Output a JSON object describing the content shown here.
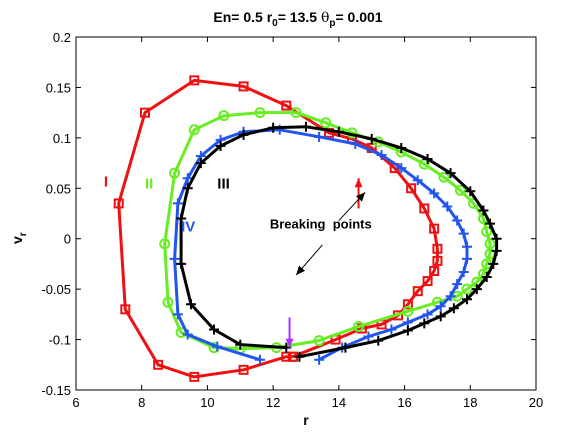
{
  "chart_data": {
    "type": "line",
    "title_parts": {
      "t1": "En= 0.5 r",
      "t1_sub": "0",
      "t2": "= 13.5 ",
      "t2_greek": "θ",
      "t2_sub": "p",
      "t3": "= 0.001"
    },
    "xlabel": "r",
    "ylabel_main": "v",
    "ylabel_sub": "r",
    "xlim": [
      6,
      20
    ],
    "ylim": [
      -0.15,
      0.2
    ],
    "xticks": [
      6,
      8,
      10,
      12,
      14,
      16,
      18,
      20
    ],
    "xtick_labels": [
      "6",
      "8",
      "10",
      "12",
      "14",
      "16",
      "18",
      "20"
    ],
    "yticks": [
      -0.15,
      -0.1,
      -0.05,
      0,
      0.05,
      0.1,
      0.15,
      0.2
    ],
    "ytick_labels": [
      "-0.15",
      "-0.1",
      "-0.05",
      "0",
      "0.05",
      "0.1",
      "0.15",
      "0.2"
    ],
    "grid": false,
    "series": [
      {
        "name": "I",
        "color": "#ee1111",
        "marker": "square",
        "x": [
          12.6,
          12.4,
          11.1,
          9.6,
          8.5,
          7.5,
          7.3,
          8.1,
          9.6,
          11.1,
          12.4,
          13.7,
          14.4,
          15.0,
          15.7,
          16.2,
          16.6,
          16.9,
          17.0,
          17.0,
          16.9,
          16.7,
          16.4,
          16.1,
          15.8,
          15.3,
          14.7,
          13.9,
          12.6
        ],
        "y": [
          -0.117,
          -0.117,
          -0.13,
          -0.137,
          -0.125,
          -0.07,
          0.035,
          0.125,
          0.157,
          0.151,
          0.132,
          0.105,
          0.099,
          0.09,
          0.07,
          0.05,
          0.03,
          0.01,
          -0.01,
          -0.022,
          -0.032,
          -0.042,
          -0.052,
          -0.065,
          -0.076,
          -0.085,
          -0.089,
          -0.1,
          -0.117
        ]
      },
      {
        "name": "II",
        "color": "#66ee22",
        "marker": "circle",
        "x": [
          11.0,
          10.2,
          9.2,
          8.8,
          8.7,
          9.0,
          9.6,
          10.5,
          11.6,
          12.7,
          13.6,
          14.4,
          15.2,
          15.9,
          16.6,
          17.2,
          17.7,
          18.1,
          18.4,
          18.5,
          18.6,
          18.6,
          18.5,
          18.4,
          18.2,
          17.9,
          17.6,
          17.0,
          16.1,
          14.6,
          13.4,
          12.1,
          11.0
        ],
        "y": [
          -0.109,
          -0.108,
          -0.093,
          -0.063,
          -0.005,
          0.065,
          0.108,
          0.122,
          0.125,
          0.125,
          0.115,
          0.105,
          0.096,
          0.086,
          0.074,
          0.061,
          0.048,
          0.035,
          0.02,
          0.007,
          -0.005,
          -0.015,
          -0.025,
          -0.035,
          -0.043,
          -0.05,
          -0.057,
          -0.063,
          -0.072,
          -0.087,
          -0.101,
          -0.108,
          -0.109
        ]
      },
      {
        "name": "IV",
        "color": "#2255ee",
        "marker": "plus",
        "x": [
          11.6,
          10.3,
          9.4,
          9.1,
          9.0,
          9.1,
          9.4,
          9.8,
          10.4,
          11.1,
          12.2,
          13.4,
          14.5,
          15.3,
          15.9,
          16.4,
          16.9,
          17.3,
          17.6,
          17.8,
          17.9,
          17.9,
          17.8,
          17.6,
          17.4,
          17.1,
          16.7,
          16.1,
          15.6,
          14.9,
          14.1,
          13.4
        ],
        "y": [
          -0.12,
          -0.107,
          -0.095,
          -0.075,
          -0.02,
          0.035,
          0.06,
          0.082,
          0.098,
          0.106,
          0.108,
          0.101,
          0.094,
          0.083,
          0.07,
          0.058,
          0.045,
          0.032,
          0.018,
          0.005,
          -0.008,
          -0.02,
          -0.033,
          -0.045,
          -0.057,
          -0.067,
          -0.075,
          -0.083,
          -0.09,
          -0.097,
          -0.108,
          -0.12
        ]
      },
      {
        "name": "III",
        "color": "#000000",
        "marker": "plus",
        "x": [
          12.4,
          11.0,
          10.2,
          9.5,
          9.2,
          9.2,
          9.4,
          9.8,
          10.4,
          11.1,
          12.0,
          13.0,
          14.0,
          15.0,
          15.9,
          16.7,
          17.4,
          18.0,
          18.4,
          18.6,
          18.8,
          18.8,
          18.7,
          18.5,
          18.2,
          17.9,
          17.5,
          17.1,
          16.6,
          16.1,
          15.2,
          14.2,
          12.8
        ],
        "y": [
          -0.108,
          -0.105,
          -0.09,
          -0.065,
          -0.025,
          0.02,
          0.05,
          0.075,
          0.092,
          0.103,
          0.11,
          0.111,
          0.106,
          0.099,
          0.09,
          0.079,
          0.065,
          0.047,
          0.028,
          0.015,
          0.0,
          -0.012,
          -0.025,
          -0.038,
          -0.05,
          -0.06,
          -0.069,
          -0.077,
          -0.084,
          -0.091,
          -0.101,
          -0.108,
          -0.117
        ]
      }
    ],
    "annotations": {
      "label_I": {
        "text": "I",
        "x": 6.85,
        "y": 0.052,
        "color": "#ee1111"
      },
      "label_II": {
        "text": "II",
        "x": 8.1,
        "y": 0.05,
        "color": "#66ee22"
      },
      "label_III": {
        "text": "III",
        "x": 10.3,
        "y": 0.05,
        "color": "#000000"
      },
      "label_IV": {
        "text": "IV",
        "x": 9.2,
        "y": 0.007,
        "color": "#2255ee"
      },
      "breaking": {
        "text": "Breaking  points",
        "x": 11.9,
        "y": 0.01,
        "color": "#000000"
      },
      "arrows": [
        {
          "color": "#ee1111",
          "from": [
            14.6,
            0.03
          ],
          "to": [
            14.6,
            0.06
          ]
        },
        {
          "color": "#aa33ff",
          "from": [
            12.5,
            -0.078
          ],
          "to": [
            12.5,
            -0.108
          ]
        },
        {
          "color": "#000000",
          "from": [
            14.0,
            0.018
          ],
          "to": [
            14.8,
            0.046
          ]
        },
        {
          "color": "#000000",
          "from": [
            13.5,
            -0.006
          ],
          "to": [
            12.7,
            -0.036
          ]
        }
      ]
    }
  }
}
